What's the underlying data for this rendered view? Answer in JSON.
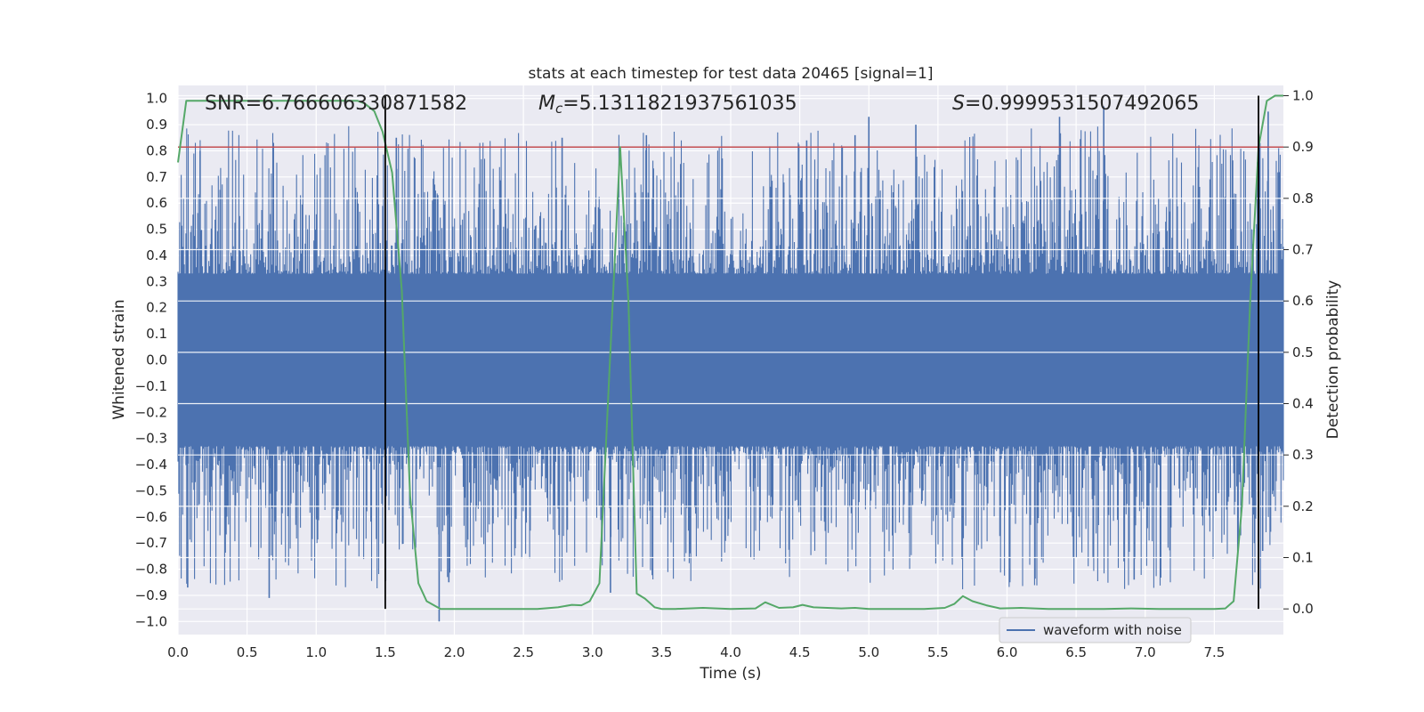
{
  "chart_data": {
    "type": "line",
    "title": "stats at each timestep for test data 20465 [signal=1]",
    "xlabel": "Time (s)",
    "ylabel_left": "Whitened strain",
    "ylabel_right": "Detection probability",
    "xlim": [
      0.0,
      8.0
    ],
    "ylim_left": [
      -1.05,
      1.05
    ],
    "ylim_right": [
      -0.05,
      1.02
    ],
    "x_ticks": [
      "0.0",
      "0.5",
      "1.0",
      "1.5",
      "2.0",
      "2.5",
      "3.0",
      "3.5",
      "4.0",
      "4.5",
      "5.0",
      "5.5",
      "6.0",
      "6.5",
      "7.0",
      "7.5"
    ],
    "x_tick_values": [
      0.0,
      0.5,
      1.0,
      1.5,
      2.0,
      2.5,
      3.0,
      3.5,
      4.0,
      4.5,
      5.0,
      5.5,
      6.0,
      6.5,
      7.0,
      7.5
    ],
    "y_left_ticks": [
      "1.0",
      "0.9",
      "0.8",
      "0.7",
      "0.6",
      "0.5",
      "0.4",
      "0.3",
      "0.2",
      "0.1",
      "0.0",
      "−0.1",
      "−0.2",
      "−0.3",
      "−0.4",
      "−0.5",
      "−0.6",
      "−0.7",
      "−0.8",
      "−0.9",
      "−1.0"
    ],
    "y_left_tick_values": [
      1.0,
      0.9,
      0.8,
      0.7,
      0.6,
      0.5,
      0.4,
      0.3,
      0.2,
      0.1,
      0.0,
      -0.1,
      -0.2,
      -0.3,
      -0.4,
      -0.5,
      -0.6,
      -0.7,
      -0.8,
      -0.9,
      -1.0
    ],
    "y_right_ticks": [
      "1.0",
      "0.9",
      "0.8",
      "0.7",
      "0.6",
      "0.5",
      "0.4",
      "0.3",
      "0.2",
      "0.1",
      "0.0"
    ],
    "y_right_tick_values": [
      1.0,
      0.9,
      0.8,
      0.7,
      0.6,
      0.5,
      0.4,
      0.3,
      0.2,
      0.1,
      0.0
    ],
    "annotations": {
      "snr": "SNR=6.766606330871582",
      "mc_symbol": "M",
      "mc_sub": "c",
      "mc_value": "=5.1311821937561035",
      "s_symbol": "S",
      "s_value": "=0.9999531507492065"
    },
    "legend": {
      "label": "waveform with noise",
      "placement": "lower-right"
    },
    "threshold": {
      "value": 0.9,
      "axis": "right",
      "color": "#c44e52"
    },
    "vertical_lines": [
      1.5,
      7.82
    ],
    "waveform": {
      "name": "waveform with noise",
      "color": "#4c72b0",
      "segments": [
        {
          "x0": 0.0,
          "x1": 1.5,
          "amp": 0.45
        },
        {
          "x0": 1.5,
          "x1": 3.0,
          "amp": 0.42
        },
        {
          "x0": 3.0,
          "x1": 5.5,
          "amp": 0.43
        },
        {
          "x0": 5.5,
          "x1": 8.0,
          "amp": 0.45
        }
      ],
      "peaks": [
        {
          "t": 0.07,
          "v": -0.87
        },
        {
          "t": 0.16,
          "v": 0.8
        },
        {
          "t": 0.66,
          "v": -0.91
        },
        {
          "t": 1.58,
          "v": 0.85
        },
        {
          "t": 1.89,
          "v": -1.0
        },
        {
          "t": 1.96,
          "v": -0.85
        },
        {
          "t": 2.78,
          "v": 0.85
        },
        {
          "t": 3.13,
          "v": -0.89
        },
        {
          "t": 3.39,
          "v": 0.86
        },
        {
          "t": 4.55,
          "v": 0.84
        },
        {
          "t": 4.9,
          "v": 0.86
        },
        {
          "t": 5.0,
          "v": 0.93
        },
        {
          "t": 5.34,
          "v": 0.9
        },
        {
          "t": 6.02,
          "v": -0.85
        },
        {
          "t": 6.38,
          "v": 0.93
        },
        {
          "t": 6.7,
          "v": 0.97
        },
        {
          "t": 6.92,
          "v": -0.84
        },
        {
          "t": 7.89,
          "v": 0.95
        },
        {
          "t": 7.83,
          "v": 0.83
        },
        {
          "t": 7.85,
          "v": -0.73
        }
      ]
    },
    "detection_probability": {
      "name": "detection probability",
      "color": "#55a868",
      "x": [
        0.0,
        0.06,
        0.12,
        0.2,
        0.3,
        0.4,
        0.5,
        0.6,
        0.7,
        0.8,
        0.9,
        1.0,
        1.1,
        1.2,
        1.3,
        1.35,
        1.42,
        1.48,
        1.55,
        1.62,
        1.68,
        1.74,
        1.8,
        1.9,
        2.0,
        2.2,
        2.4,
        2.6,
        2.75,
        2.85,
        2.92,
        2.98,
        3.05,
        3.12,
        3.2,
        3.26,
        3.32,
        3.38,
        3.45,
        3.5,
        3.6,
        3.8,
        4.0,
        4.18,
        4.25,
        4.35,
        4.45,
        4.52,
        4.6,
        4.8,
        4.9,
        5.0,
        5.2,
        5.4,
        5.55,
        5.62,
        5.68,
        5.75,
        5.85,
        5.95,
        6.1,
        6.3,
        6.5,
        6.7,
        6.9,
        7.1,
        7.3,
        7.5,
        7.58,
        7.64,
        7.7,
        7.76,
        7.82,
        7.88,
        7.94,
        8.0
      ],
      "y": [
        0.87,
        0.99,
        0.99,
        0.99,
        0.99,
        0.99,
        0.99,
        0.99,
        0.99,
        0.99,
        0.99,
        0.99,
        0.99,
        0.99,
        0.99,
        0.985,
        0.97,
        0.93,
        0.85,
        0.62,
        0.22,
        0.05,
        0.015,
        0.0,
        0.0,
        0.0,
        0.0,
        0.0,
        0.003,
        0.008,
        0.007,
        0.015,
        0.05,
        0.45,
        0.9,
        0.6,
        0.03,
        0.02,
        0.003,
        0.0,
        0.0,
        0.002,
        0.0,
        0.001,
        0.013,
        0.002,
        0.003,
        0.008,
        0.003,
        0.001,
        0.002,
        0.0,
        0.0,
        0.0,
        0.002,
        0.01,
        0.025,
        0.015,
        0.007,
        0.001,
        0.002,
        0.0,
        0.0,
        0.0,
        0.001,
        0.0,
        0.0,
        0.0,
        0.001,
        0.015,
        0.2,
        0.6,
        0.9,
        0.99,
        1.0,
        1.0
      ]
    }
  }
}
